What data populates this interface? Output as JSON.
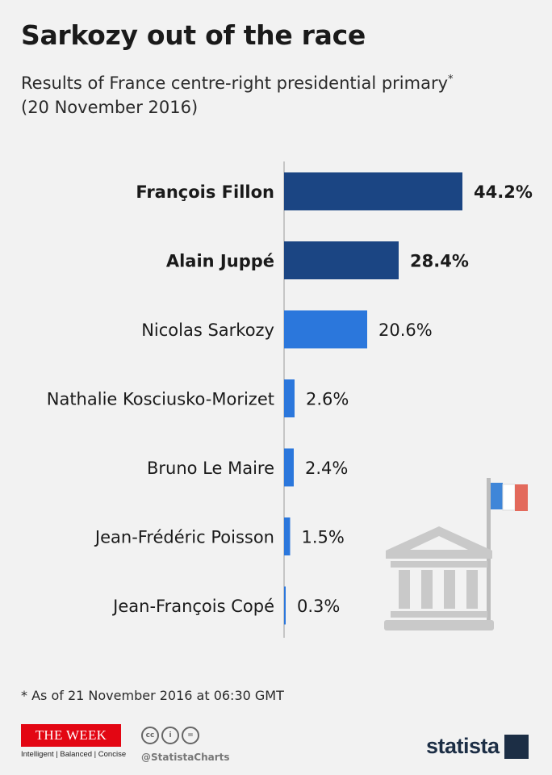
{
  "title": "Sarkozy out of the race",
  "subtitle": "Results of France centre-right presidential primary",
  "subtitle_marker": "*",
  "subtitle_date": "(20 November 2016)",
  "footnote": "* As of 21 November 2016 at 06:30 GMT",
  "colors": {
    "bar_dark": "#1b4583",
    "bar_light": "#2b77dc",
    "building": "#c9c9c9",
    "flag_blue": "#3f86d8",
    "flag_white": "#ffffff",
    "flag_red": "#e36a5c"
  },
  "chart_data": {
    "type": "bar",
    "orientation": "horizontal",
    "title": "Sarkozy out of the race",
    "xlabel": "",
    "ylabel": "",
    "xlim": [
      0,
      44.2
    ],
    "grid": false,
    "value_suffix": "%",
    "categories": [
      "François Fillon",
      "Alain Juppé",
      "Nicolas Sarkozy",
      "Nathalie Kosciusko-Morizet",
      "Bruno Le Maire",
      "Jean-Frédéric Poisson",
      "Jean-François Copé"
    ],
    "values": [
      44.2,
      28.4,
      20.6,
      2.6,
      2.4,
      1.5,
      0.3
    ],
    "value_labels": [
      "44.2%",
      "28.4%",
      "20.6%",
      "2.6%",
      "2.4%",
      "1.5%",
      "0.3%"
    ],
    "highlighted": [
      true,
      true,
      false,
      false,
      false,
      false,
      false
    ]
  },
  "illustration": {
    "icon": "government-building-icon",
    "flag": "france-flag-icon"
  },
  "branding": {
    "publisher": "THE WEEK",
    "publisher_tagline": "Intelligent | Balanced | Concise",
    "license_icons": [
      "cc-icon",
      "attribution-icon",
      "no-derivatives-icon"
    ],
    "license_icon_text": [
      "cc",
      "i",
      "="
    ],
    "handle": "@StatistaCharts",
    "source_logo": "statista"
  }
}
